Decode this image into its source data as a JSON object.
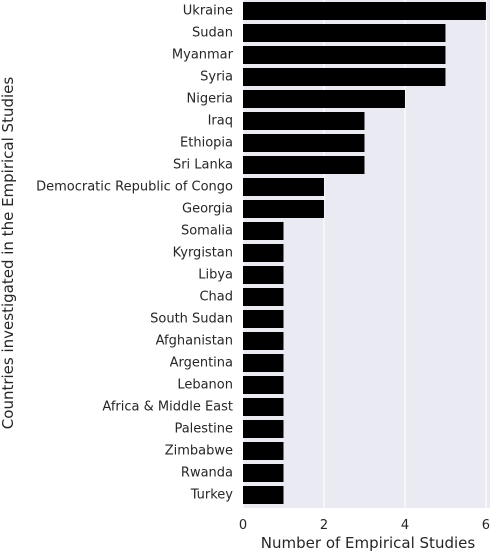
{
  "chart_data": {
    "type": "bar",
    "orientation": "horizontal",
    "categories": [
      "Ukraine",
      "Sudan",
      "Myanmar",
      "Syria",
      "Nigeria",
      "Iraq",
      "Ethiopia",
      "Sri Lanka",
      "Democratic Republic of Congo",
      "Georgia",
      "Somalia",
      "Kyrgistan",
      "Libya",
      "Chad",
      "South Sudan",
      "Afghanistan",
      "Argentina",
      "Lebanon",
      "Africa & Middle East",
      "Palestine",
      "Zimbabwe",
      "Rwanda",
      "Turkey"
    ],
    "values": [
      6,
      5,
      5,
      5,
      4,
      3,
      3,
      3,
      2,
      2,
      1,
      1,
      1,
      1,
      1,
      1,
      1,
      1,
      1,
      1,
      1,
      1,
      1
    ],
    "xlabel": "Number of Empirical Studies",
    "ylabel": "Countries investigated in the Empirical Studies",
    "xlim": [
      0,
      6.1
    ],
    "xticks": [
      0,
      2,
      4,
      6
    ],
    "grid": true,
    "colors": {
      "bar": "#000000",
      "plot_background": "#eaeaf2",
      "grid": "#ffffff",
      "text": "#262626"
    }
  }
}
